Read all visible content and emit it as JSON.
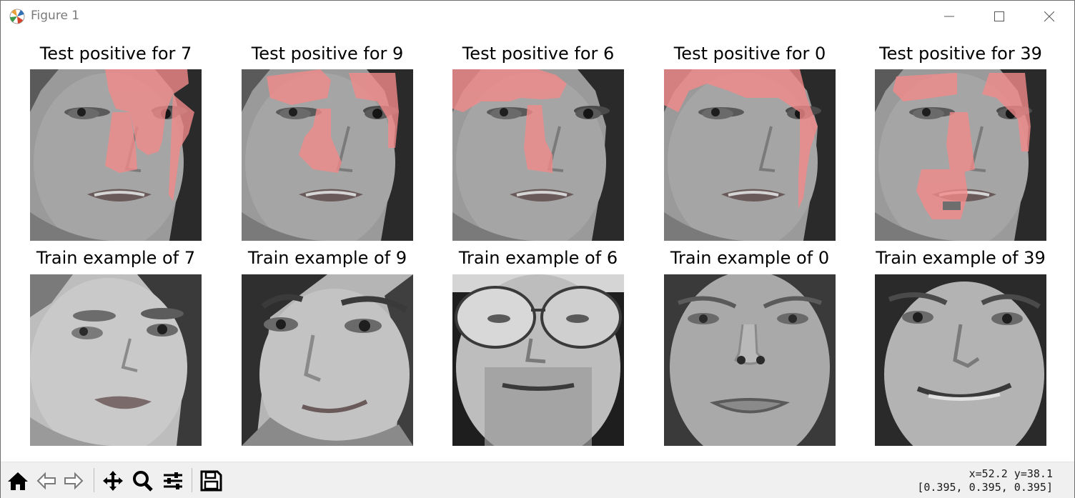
{
  "window": {
    "title": "Figure 1",
    "controls": {
      "minimize": "minimize",
      "maximize": "maximize",
      "close": "close"
    }
  },
  "figure": {
    "test_row": [
      {
        "title": "Test positive for 7",
        "overlay_color": "#f08080"
      },
      {
        "title": "Test positive for 9",
        "overlay_color": "#f08080"
      },
      {
        "title": "Test positive for 6",
        "overlay_color": "#f08080"
      },
      {
        "title": "Test positive for 0",
        "overlay_color": "#f08080"
      },
      {
        "title": "Test positive for 39",
        "overlay_color": "#f08080"
      }
    ],
    "train_row": [
      {
        "title": "Train example of 7",
        "subject": "woman-dark-hair"
      },
      {
        "title": "Train example of 9",
        "subject": "woman-smiling"
      },
      {
        "title": "Train example of 6",
        "subject": "man-glasses-beard"
      },
      {
        "title": "Train example of 0",
        "subject": "man-round-face"
      },
      {
        "title": "Train example of 39",
        "subject": "man-smiling"
      }
    ]
  },
  "toolbar": {
    "tools": [
      "home-icon",
      "back-icon",
      "forward-icon",
      "pan-icon",
      "zoom-icon",
      "configure-subplots-icon",
      "save-icon"
    ],
    "coords_line1": "x=52.2 y=38.1",
    "coords_line2": "[0.395, 0.395, 0.395]"
  }
}
